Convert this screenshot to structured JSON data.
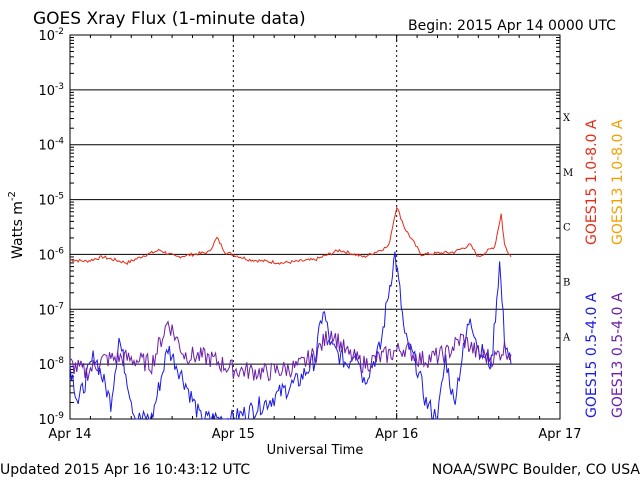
{
  "header": {
    "title": "GOES Xray Flux (1-minute data)",
    "begin": "Begin:  2015 Apr 14 0000 UTC"
  },
  "footer": {
    "updated": "Updated 2015 Apr 16 10:43:12 UTC",
    "credit": "NOAA/SWPC Boulder, CO USA"
  },
  "chart_data": {
    "type": "line",
    "title": "GOES Xray Flux (1-minute data)",
    "xlabel": "Universal Time",
    "ylabel": "Watts m",
    "ylabel_superscript": "-2",
    "y_scale": "log",
    "ylim": [
      1e-09,
      0.01
    ],
    "y_ticks": [
      {
        "base": "10",
        "exp": "-2"
      },
      {
        "base": "10",
        "exp": "-3"
      },
      {
        "base": "10",
        "exp": "-4"
      },
      {
        "base": "10",
        "exp": "-5"
      },
      {
        "base": "10",
        "exp": "-6"
      },
      {
        "base": "10",
        "exp": "-7"
      },
      {
        "base": "10",
        "exp": "-8"
      },
      {
        "base": "10",
        "exp": "-9"
      }
    ],
    "x_ticks": [
      "Apr 14",
      "Apr 15",
      "Apr 16",
      "Apr 17"
    ],
    "xlim_days": [
      0,
      3
    ],
    "flare_classes": [
      {
        "label": "X",
        "value": 0.0001
      },
      {
        "label": "M",
        "value": 1e-05
      },
      {
        "label": "C",
        "value": 1e-06
      },
      {
        "label": "B",
        "value": 1e-07
      },
      {
        "label": "A",
        "value": 1e-08
      }
    ],
    "series": [
      {
        "name": "GOES15 1.0-8.0 A",
        "color": "#e52b17",
        "points": [
          [
            0,
            8e-07
          ],
          [
            0.1,
            7.5e-07
          ],
          [
            0.2,
            9e-07
          ],
          [
            0.35,
            7e-07
          ],
          [
            0.45,
            9.5e-07
          ],
          [
            0.55,
            1.2e-06
          ],
          [
            0.65,
            9e-07
          ],
          [
            0.85,
            1.1e-06
          ],
          [
            0.9,
            2e-06
          ],
          [
            0.95,
            1.1e-06
          ],
          [
            1.1,
            8e-07
          ],
          [
            1.3,
            7e-07
          ],
          [
            1.5,
            8e-07
          ],
          [
            1.65,
            1.2e-06
          ],
          [
            1.8,
            9e-07
          ],
          [
            1.95,
            1.4e-06
          ],
          [
            2.0,
            7.5e-06
          ],
          [
            2.05,
            3e-06
          ],
          [
            2.15,
            1e-06
          ],
          [
            2.35,
            1.1e-06
          ],
          [
            2.45,
            1.5e-06
          ],
          [
            2.5,
            9e-07
          ],
          [
            2.6,
            1.4e-06
          ],
          [
            2.64,
            5.5e-06
          ],
          [
            2.66,
            1.5e-06
          ],
          [
            2.7,
            9e-07
          ]
        ]
      },
      {
        "name": "GOES13 1.0-8.0 A",
        "color": "#f2a000",
        "points": []
      },
      {
        "name": "GOES15 0.5-4.0 A",
        "color": "#1a1ae6",
        "points": [
          [
            0,
            1e-08
          ],
          [
            0.05,
            2e-09
          ],
          [
            0.15,
            1.5e-08
          ],
          [
            0.25,
            2e-09
          ],
          [
            0.3,
            3e-08
          ],
          [
            0.4,
            1e-09
          ],
          [
            0.5,
            1e-09
          ],
          [
            0.6,
            2e-08
          ],
          [
            0.7,
            5e-09
          ],
          [
            0.8,
            1e-09
          ],
          [
            1.0,
            1e-09
          ],
          [
            1.2,
            2e-09
          ],
          [
            1.4,
            5e-09
          ],
          [
            1.5,
            1.2e-08
          ],
          [
            1.55,
            1e-07
          ],
          [
            1.6,
            2e-08
          ],
          [
            1.7,
            1e-08
          ],
          [
            1.75,
            2e-08
          ],
          [
            1.8,
            5e-09
          ],
          [
            1.9,
            2e-08
          ],
          [
            1.95,
            2e-07
          ],
          [
            1.99,
            1e-06
          ],
          [
            2.02,
            2e-07
          ],
          [
            2.05,
            3e-08
          ],
          [
            2.12,
            1e-08
          ],
          [
            2.18,
            2e-09
          ],
          [
            2.25,
            1e-09
          ],
          [
            2.3,
            1.3e-08
          ],
          [
            2.35,
            2e-09
          ],
          [
            2.45,
            8e-08
          ],
          [
            2.5,
            2e-08
          ],
          [
            2.58,
            1e-08
          ],
          [
            2.63,
            7e-07
          ],
          [
            2.66,
            3e-08
          ],
          [
            2.7,
            1e-08
          ]
        ]
      },
      {
        "name": "GOES13 0.5-4.0 A",
        "color": "#6a1fa8",
        "points": [
          [
            0,
            1e-08
          ],
          [
            0.1,
            7e-09
          ],
          [
            0.2,
            1.2e-08
          ],
          [
            0.3,
            1.3e-08
          ],
          [
            0.4,
            1.2e-08
          ],
          [
            0.5,
            1e-08
          ],
          [
            0.6,
            6e-08
          ],
          [
            0.7,
            1.5e-08
          ],
          [
            0.85,
            1.3e-08
          ],
          [
            1.0,
            8e-09
          ],
          [
            1.2,
            7e-09
          ],
          [
            1.4,
            9e-09
          ],
          [
            1.5,
            1.5e-08
          ],
          [
            1.6,
            4e-08
          ],
          [
            1.7,
            1.5e-08
          ],
          [
            1.8,
            1e-08
          ],
          [
            1.95,
            1.5e-08
          ],
          [
            2.05,
            2e-08
          ],
          [
            2.15,
            1.2e-08
          ],
          [
            2.3,
            1.5e-08
          ],
          [
            2.4,
            3e-08
          ],
          [
            2.5,
            1.5e-08
          ],
          [
            2.6,
            1.3e-08
          ],
          [
            2.66,
            2e-08
          ],
          [
            2.7,
            1.5e-08
          ]
        ]
      }
    ],
    "grid": true,
    "legend_placement": "right-vertical"
  }
}
